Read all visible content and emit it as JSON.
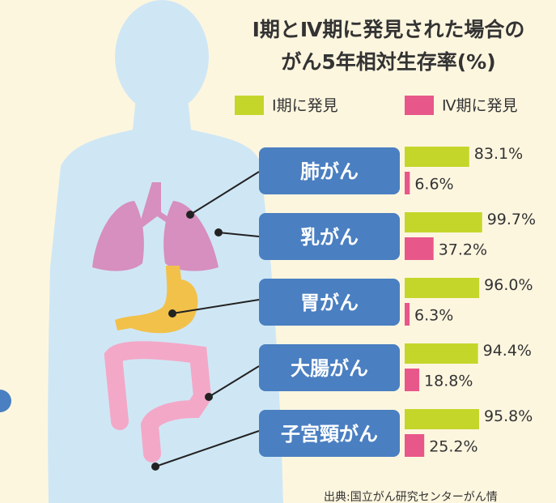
{
  "chart_data": {
    "type": "bar",
    "title": "Ⅰ期とⅣ期に発見された場合の",
    "subtitle": "がん5年相対生存率(%)",
    "categories": [
      "肺がん",
      "乳がん",
      "胃がん",
      "大腸がん",
      "子宮頸がん"
    ],
    "series": [
      {
        "name": "Ⅰ期に発見",
        "color": "#c5d62a",
        "values": [
          83.1,
          99.7,
          96.0,
          94.4,
          95.8
        ],
        "value_labels": [
          "83.1%",
          "99.7%",
          "96.0%",
          "94.4%",
          "95.8%"
        ]
      },
      {
        "name": "Ⅳ期に発見",
        "color": "#e8578a",
        "values": [
          6.6,
          37.2,
          6.3,
          18.8,
          25.2
        ],
        "value_labels": [
          "6.6%",
          "37.2%",
          "6.3%",
          "18.8%",
          "25.2%"
        ]
      }
    ],
    "category_color": "#4a7fc1",
    "source": "出典:国立がん研究センターがん情"
  }
}
